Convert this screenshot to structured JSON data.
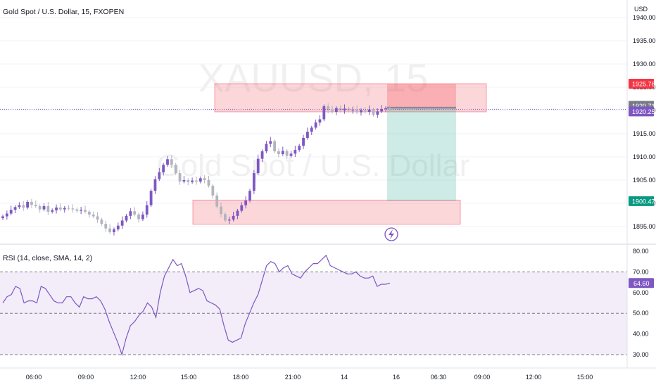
{
  "header": {
    "title": "Gold Spot / U.S. Dollar, 15, FXOPEN",
    "currency": "USD"
  },
  "watermark": {
    "symbol": "XAUUSD, 15",
    "name": "Gold Spot / U.S. Dollar"
  },
  "price_axis": {
    "ticks": [
      "1940.00",
      "1935.00",
      "1930.00",
      "1925.00",
      "1920.00",
      "1915.00",
      "1910.00",
      "1905.00",
      "1900.00",
      "1895.00"
    ],
    "tick_values": [
      1940,
      1935,
      1930,
      1925,
      1920,
      1915,
      1910,
      1905,
      1900,
      1895
    ]
  },
  "price_tags": [
    {
      "label": "1925.76",
      "value": 1925.76,
      "color": "#f23645"
    },
    {
      "label": "1920.71",
      "value": 1920.71,
      "color": "#787b86"
    },
    {
      "label": "1920.25",
      "value": 1920.25,
      "color": "#7e57c2"
    },
    {
      "label": "1900.47",
      "value": 1900.47,
      "color": "#089981"
    }
  ],
  "rsi_panel": {
    "title": "RSI (14, close, SMA, 14, 2)",
    "ticks": [
      "80.00",
      "70.00",
      "60.00",
      "50.00",
      "40.00",
      "30.00"
    ],
    "tick_values": [
      80,
      70,
      60,
      50,
      40,
      30
    ],
    "current_label": "64.60",
    "current_value": 64.6,
    "bands": {
      "upper": 70,
      "middle": 50,
      "lower": 30
    },
    "line_color": "#7e57c2",
    "band_fill": "#ede7f6"
  },
  "time_axis": {
    "labels": [
      "06:00",
      "09:00",
      "12:00",
      "15:00",
      "18:00",
      "21:00",
      "14",
      "16",
      "06:30",
      "09:00",
      "12:00",
      "15:00"
    ]
  },
  "colors": {
    "up": "#7e57c2",
    "down": "#b2b5be",
    "zone": "#f23645",
    "profit": "#089981",
    "loss": "#f23645"
  },
  "chart_data": [
    {
      "type": "candlestick",
      "title": "Gold Spot / U.S. Dollar, 15, FXOPEN",
      "ylabel": "USD",
      "ylim": [
        1893,
        1941
      ],
      "x": [
        "06:00",
        "09:00",
        "12:00",
        "15:00",
        "18:00",
        "21:00",
        "14",
        "16",
        "06:30",
        "09:00",
        "12:00",
        "15:00"
      ],
      "closes": [
        1897.2,
        1897.8,
        1898.6,
        1899.2,
        1899.6,
        1899.1,
        1900.3,
        1899.7,
        1899.4,
        1898.7,
        1899.4,
        1898.2,
        1898.5,
        1899.1,
        1898.7,
        1899.0,
        1898.9,
        1898.7,
        1898.4,
        1898.6,
        1898.2,
        1897.6,
        1897.2,
        1896.5,
        1895.6,
        1894.6,
        1893.8,
        1894.4,
        1895.2,
        1896.3,
        1897.3,
        1898.3,
        1897.6,
        1896.6,
        1897.6,
        1899.6,
        1902.7,
        1905.2,
        1906.7,
        1908.3,
        1909.5,
        1908.3,
        1906.5,
        1904.7,
        1905.0,
        1904.6,
        1904.9,
        1904.7,
        1905.4,
        1905.0,
        1903.8,
        1901.7,
        1899.3,
        1897.7,
        1896.3,
        1896.5,
        1897.3,
        1898.4,
        1899.6,
        1900.6,
        1902.7,
        1906.5,
        1909.6,
        1911.2,
        1912.8,
        1913.4,
        1911.2,
        1910.6,
        1911.3,
        1910.2,
        1910.7,
        1911.5,
        1912.4,
        1914.1,
        1915.4,
        1916.3,
        1917.4,
        1918.1,
        1920.9,
        1920.1,
        1919.7,
        1920.5,
        1920.0,
        1920.4,
        1920.0,
        1920.2,
        1919.6,
        1920.1,
        1919.7,
        1920.2,
        1919.1,
        1919.8,
        1920.3,
        1920.5,
        1920.25
      ],
      "bullish_fvg_zone": {
        "from": 1895.5,
        "to": 1900.7
      },
      "bearish_fvg_zone": {
        "from": 1919.7,
        "to": 1925.76
      },
      "short_position": {
        "entry": 1920.71,
        "stop": 1925.76,
        "target": 1900.47
      },
      "last_price": 1920.25
    },
    {
      "type": "line",
      "title": "RSI (14, close, SMA, 14, 2)",
      "ylim": [
        28,
        81
      ],
      "series": [
        {
          "name": "RSI (14, close, SMA, 14, 2)",
          "values": [
            55,
            58,
            59,
            63,
            62,
            55,
            56,
            56,
            55,
            63,
            62,
            59,
            56,
            55,
            55,
            58,
            58,
            55,
            53,
            58,
            57,
            57,
            58,
            56,
            52,
            46,
            41,
            36,
            30,
            38,
            44,
            46,
            49,
            51,
            55,
            53,
            48,
            60,
            68,
            72,
            76,
            73,
            74,
            68,
            60,
            61,
            62,
            61,
            56,
            55,
            54,
            52,
            44,
            37,
            36,
            37,
            38,
            45,
            50,
            55,
            59,
            66,
            73,
            75,
            74,
            70,
            72,
            73,
            69,
            68,
            67,
            70,
            72,
            74,
            74,
            76,
            78,
            73,
            72,
            71,
            70,
            69,
            69,
            70,
            68,
            67,
            67,
            68,
            63,
            64,
            64,
            64.6
          ]
        }
      ],
      "reference_lines": [
        70,
        50,
        30
      ]
    }
  ]
}
